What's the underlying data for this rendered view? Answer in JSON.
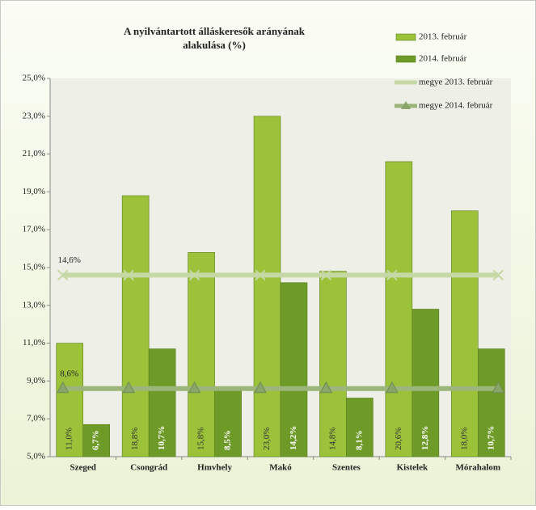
{
  "chart_data": {
    "type": "bar_line",
    "title": "A nyilvántartott álláskeresők arányának alakulása (%)",
    "categories": [
      "Szeged",
      "Csongrád",
      "Hmvhely",
      "Makó",
      "Szentes",
      "Kistelek",
      "Mórahalom"
    ],
    "series": [
      {
        "name": "2013. február",
        "type": "bar",
        "color": "#9cc23a",
        "values": [
          11.0,
          18.8,
          15.8,
          23.0,
          14.8,
          20.6,
          18.0
        ],
        "value_labels": [
          "11,0%",
          "18,8%",
          "15,8%",
          "23,0%",
          "14,8%",
          "20,6%",
          "18,0%"
        ]
      },
      {
        "name": "2014. február",
        "type": "bar",
        "color": "#6e9a28",
        "values": [
          6.7,
          10.7,
          8.5,
          14.2,
          8.1,
          12.8,
          10.7
        ],
        "value_labels": [
          "6,7%",
          "10,7%",
          "8,5%",
          "14,2%",
          "8,1%",
          "12,8%",
          "10,7%"
        ]
      },
      {
        "name": "megye 2013. február",
        "type": "line",
        "marker": "x",
        "color": "#c6d8a6",
        "values": [
          14.6,
          14.6,
          14.6,
          14.6,
          14.6,
          14.6,
          14.6
        ],
        "value_labels": [
          "14,6%",
          null,
          null,
          null,
          null,
          null,
          null
        ]
      },
      {
        "name": "megye 2014. február",
        "type": "line",
        "marker": "triangle",
        "color": "#9cb57a",
        "values": [
          8.6,
          8.6,
          8.6,
          8.6,
          8.6,
          8.6,
          8.6
        ],
        "value_labels": [
          "8,6%",
          null,
          null,
          null,
          null,
          null,
          null
        ]
      }
    ],
    "ylim": [
      5.0,
      25.0
    ],
    "yticks": [
      {
        "value": 5.0,
        "label": "5,0%"
      },
      {
        "value": 7.0,
        "label": "7,0%"
      },
      {
        "value": 9.0,
        "label": "9,0%"
      },
      {
        "value": 11.0,
        "label": "11,0%"
      },
      {
        "value": 13.0,
        "label": "13,0%"
      },
      {
        "value": 15.0,
        "label": "15,0%"
      },
      {
        "value": 17.0,
        "label": "17,0%"
      },
      {
        "value": 19.0,
        "label": "19,0%"
      },
      {
        "value": 21.0,
        "label": "21,0%"
      },
      {
        "value": 23.0,
        "label": "23,0%"
      },
      {
        "value": 25.0,
        "label": "25,0%"
      }
    ],
    "grid": false,
    "legend": "top-right"
  }
}
